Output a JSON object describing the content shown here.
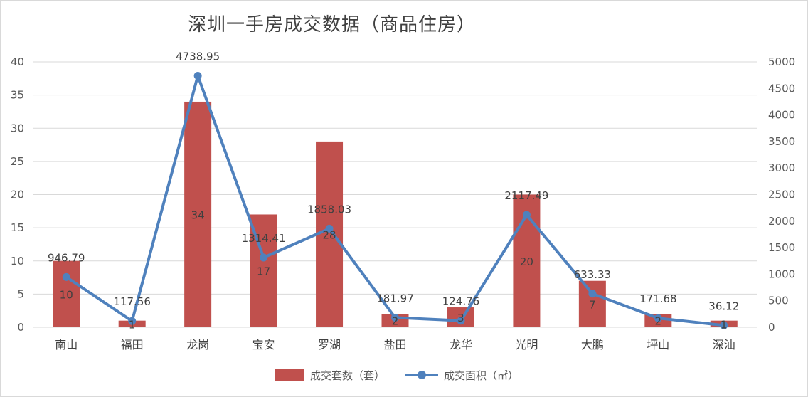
{
  "chart_data": {
    "type": "bar+line",
    "title": "深圳一手房成交数据（商品住房）",
    "categories": [
      "南山",
      "福田",
      "龙岗",
      "宝安",
      "罗湖",
      "盐田",
      "龙华",
      "光明",
      "大鹏",
      "坪山",
      "深汕"
    ],
    "series": [
      {
        "name": "成交套数（套）",
        "type": "bar",
        "axis": "left",
        "color": "#c0504d",
        "values": [
          10,
          1,
          34,
          17,
          28,
          2,
          3,
          20,
          7,
          2,
          1
        ],
        "labels": [
          "10",
          "1",
          "34",
          "17",
          "28",
          "2",
          "3",
          "20",
          "7",
          "2",
          "1"
        ]
      },
      {
        "name": "成交面积（㎡）",
        "type": "line",
        "axis": "right",
        "color": "#4f81bd",
        "values": [
          946.79,
          117.56,
          4738.95,
          1314.41,
          1858.03,
          181.97,
          124.76,
          2117.49,
          633.33,
          171.68,
          36.12
        ],
        "labels": [
          "946.79",
          "117.56",
          "4738.95",
          "1314.41",
          "1858.03",
          "181.97",
          "124.76",
          "2117.49",
          "633.33",
          "171.68",
          "36.12"
        ]
      }
    ],
    "y_left": {
      "ylim": [
        0,
        40
      ],
      "ticks": [
        "0",
        "5",
        "10",
        "15",
        "20",
        "25",
        "30",
        "35",
        "40"
      ]
    },
    "y_right": {
      "ylim": [
        0,
        5000
      ],
      "ticks": [
        "0",
        "500",
        "1000",
        "1500",
        "2000",
        "2500",
        "3000",
        "3500",
        "4000",
        "4500",
        "5000"
      ]
    },
    "grid": true,
    "legend_position": "bottom"
  }
}
